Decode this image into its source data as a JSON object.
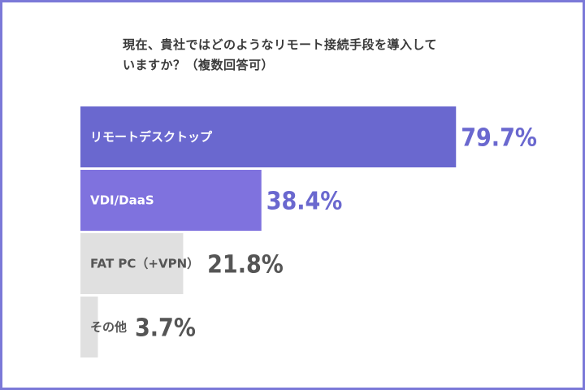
{
  "chart_data": {
    "type": "bar",
    "orientation": "horizontal",
    "title_lines": [
      "現在、貴社ではどのようなリモート接続手段を導入して",
      "いますか？（複数回答可）"
    ],
    "categories": [
      "リモートデスクトップ",
      "VDI/DaaS",
      "FAT PC（+VPN）",
      "その他"
    ],
    "values": [
      79.7,
      38.4,
      21.8,
      3.7
    ],
    "value_labels": [
      "79.7%",
      "38.4%",
      "21.8%",
      "3.7%"
    ],
    "xlim": [
      0,
      100
    ],
    "grid": false,
    "legend": "none"
  },
  "colors": {
    "bar_1": "#6a68cf",
    "bar_2": "#7f72de",
    "bar_other": "#e0e0e0",
    "value_accent": "#6a68cf",
    "value_gray": "#555555",
    "label_on_dark": "#ffffff",
    "label_on_light": "#555555",
    "frame": "#7b79d8"
  }
}
